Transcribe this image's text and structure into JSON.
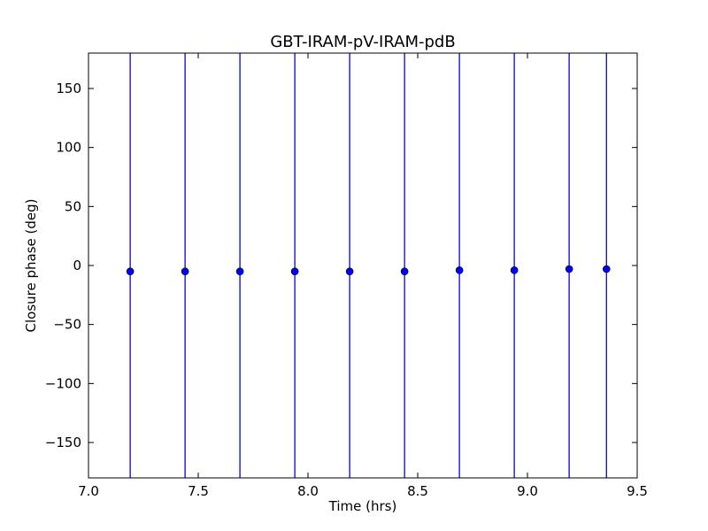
{
  "chart_data": {
    "type": "scatter",
    "title": "GBT-IRAM-pV-IRAM-pdB",
    "xlabel": "Time (hrs)",
    "ylabel": "Closure phase (deg)",
    "xlim": [
      7.0,
      9.5
    ],
    "ylim": [
      -180,
      180
    ],
    "xticks": [
      7.0,
      7.5,
      8.0,
      8.5,
      9.0,
      9.5
    ],
    "xtick_labels": [
      "7.0",
      "7.5",
      "8.0",
      "8.5",
      "9.0",
      "9.5"
    ],
    "yticks": [
      -150,
      -100,
      -50,
      0,
      50,
      100,
      150
    ],
    "ytick_labels": [
      "−150",
      "−100",
      "−50",
      "0",
      "50",
      "100",
      "150"
    ],
    "grid": false,
    "series": [
      {
        "color": "#0000ff",
        "x": [
          7.19,
          7.44,
          7.69,
          7.94,
          8.19,
          8.44,
          8.69,
          8.94,
          9.19,
          9.36
        ],
        "y": [
          -5,
          -5,
          -5,
          -5,
          -5,
          -5,
          -4,
          -4,
          -3,
          -3
        ],
        "error_range": [
          -180,
          180
        ]
      }
    ]
  }
}
